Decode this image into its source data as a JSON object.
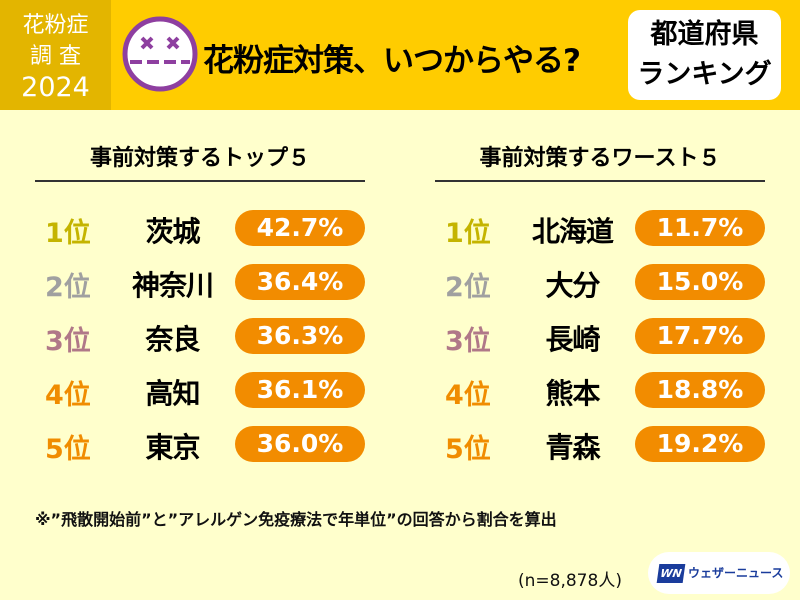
{
  "badge": {
    "line1": "花粉症",
    "line2": "調 査",
    "line3": "2024"
  },
  "title": "花粉症対策、いつからやる?",
  "ranking_box": {
    "line1": "都道府県",
    "line2": "ランキング"
  },
  "top5": {
    "heading": "事前対策するトップ５",
    "rows": [
      {
        "rank": "1位",
        "pref": "茨城",
        "value": "42.7%",
        "color": "#c4b400"
      },
      {
        "rank": "2位",
        "pref": "神奈川",
        "value": "36.4%",
        "color": "#a0a0a0"
      },
      {
        "rank": "3位",
        "pref": "奈良",
        "value": "36.3%",
        "color": "#b07888"
      },
      {
        "rank": "4位",
        "pref": "高知",
        "value": "36.1%",
        "color": "#f08c00"
      },
      {
        "rank": "5位",
        "pref": "東京",
        "value": "36.0%",
        "color": "#f08c00"
      }
    ]
  },
  "worst5": {
    "heading": "事前対策するワースト５",
    "rows": [
      {
        "rank": "1位",
        "pref": "北海道",
        "value": "11.7%",
        "color": "#c4b400"
      },
      {
        "rank": "2位",
        "pref": "大分",
        "value": "15.0%",
        "color": "#a0a0a0"
      },
      {
        "rank": "3位",
        "pref": "長崎",
        "value": "17.7%",
        "color": "#b07888"
      },
      {
        "rank": "4位",
        "pref": "熊本",
        "value": "18.8%",
        "color": "#f08c00"
      },
      {
        "rank": "5位",
        "pref": "青森",
        "value": "19.2%",
        "color": "#f08c00"
      }
    ]
  },
  "footnote": "※”飛散開始前”と”アレルゲン免疫療法で年単位”の回答から割合を算出",
  "sample": "(n=8,878人)",
  "logo": {
    "mark": "WN",
    "text": "ウェザーニュース"
  }
}
